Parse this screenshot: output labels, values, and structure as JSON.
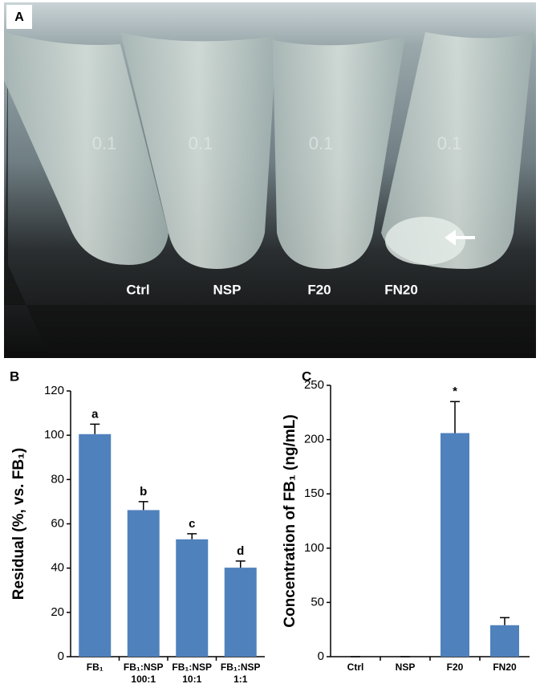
{
  "photo": {
    "panel": "A",
    "tube_labels": [
      "Ctrl",
      "NSP",
      "F20",
      "FN20"
    ],
    "tube_marks": [
      "0.1",
      "0.1",
      "0.1",
      "0.1"
    ]
  },
  "chart_data": [
    {
      "type": "bar",
      "panel": "B",
      "y_label": "Residual (%, vs. FB₁)",
      "categories": [
        "FB₁",
        "FB₁:NSP\n100:1",
        "FB₁:NSP\n10:1",
        "FB₁:NSP\n1:1"
      ],
      "values": [
        100.5,
        66.2,
        53,
        40.2
      ],
      "errors": [
        4.5,
        3.8,
        2.5,
        3
      ],
      "annotations": [
        "a",
        "b",
        "c",
        "d"
      ],
      "color": "#4f81bd",
      "ylim": [
        0,
        120
      ],
      "yticks": [
        0,
        20,
        40,
        60,
        80,
        100,
        120
      ]
    },
    {
      "type": "bar",
      "panel": "C",
      "y_label": "Concentration of FB₁ (ng/mL)",
      "categories": [
        "Ctrl",
        "NSP",
        "F20",
        "FN20"
      ],
      "values": [
        0,
        0,
        206,
        29
      ],
      "errors": [
        0,
        0,
        29,
        7
      ],
      "annotations": [
        null,
        null,
        "*",
        null
      ],
      "color": "#4f81bd",
      "ylim": [
        0,
        250
      ],
      "yticks": [
        0,
        50,
        100,
        150,
        200,
        250
      ]
    }
  ]
}
